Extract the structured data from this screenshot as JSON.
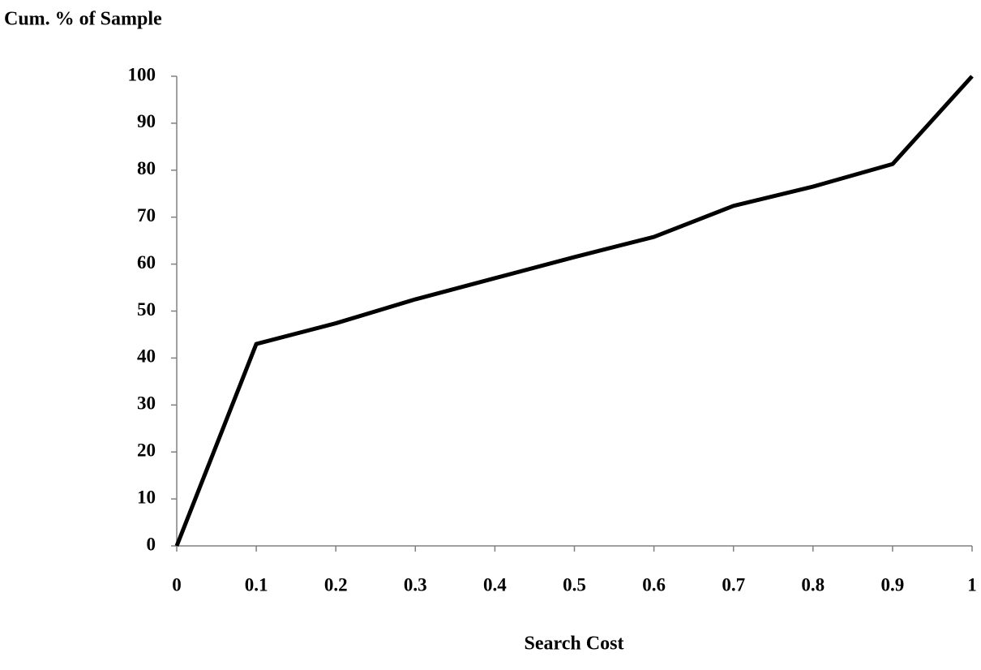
{
  "chart_data": {
    "type": "line",
    "ylabel": "Cum. % of Sample",
    "xlabel": "Search Cost",
    "x": [
      0,
      0.1,
      0.2,
      0.3,
      0.4,
      0.5,
      0.6,
      0.7,
      0.8,
      0.9,
      1
    ],
    "values": [
      0,
      43,
      47.4,
      52.5,
      57,
      61.5,
      65.8,
      72.4,
      76.5,
      81.3,
      100
    ],
    "color": "#000000",
    "xlim": [
      0,
      1
    ],
    "xticks": [
      0,
      0.1,
      0.2,
      0.3,
      0.4,
      0.5,
      0.6,
      0.7,
      0.8,
      0.9,
      1
    ],
    "ylim": [
      0,
      100
    ],
    "yticks": [
      0,
      10,
      20,
      30,
      40,
      50,
      60,
      70,
      80,
      90,
      100
    ],
    "grid": false
  }
}
